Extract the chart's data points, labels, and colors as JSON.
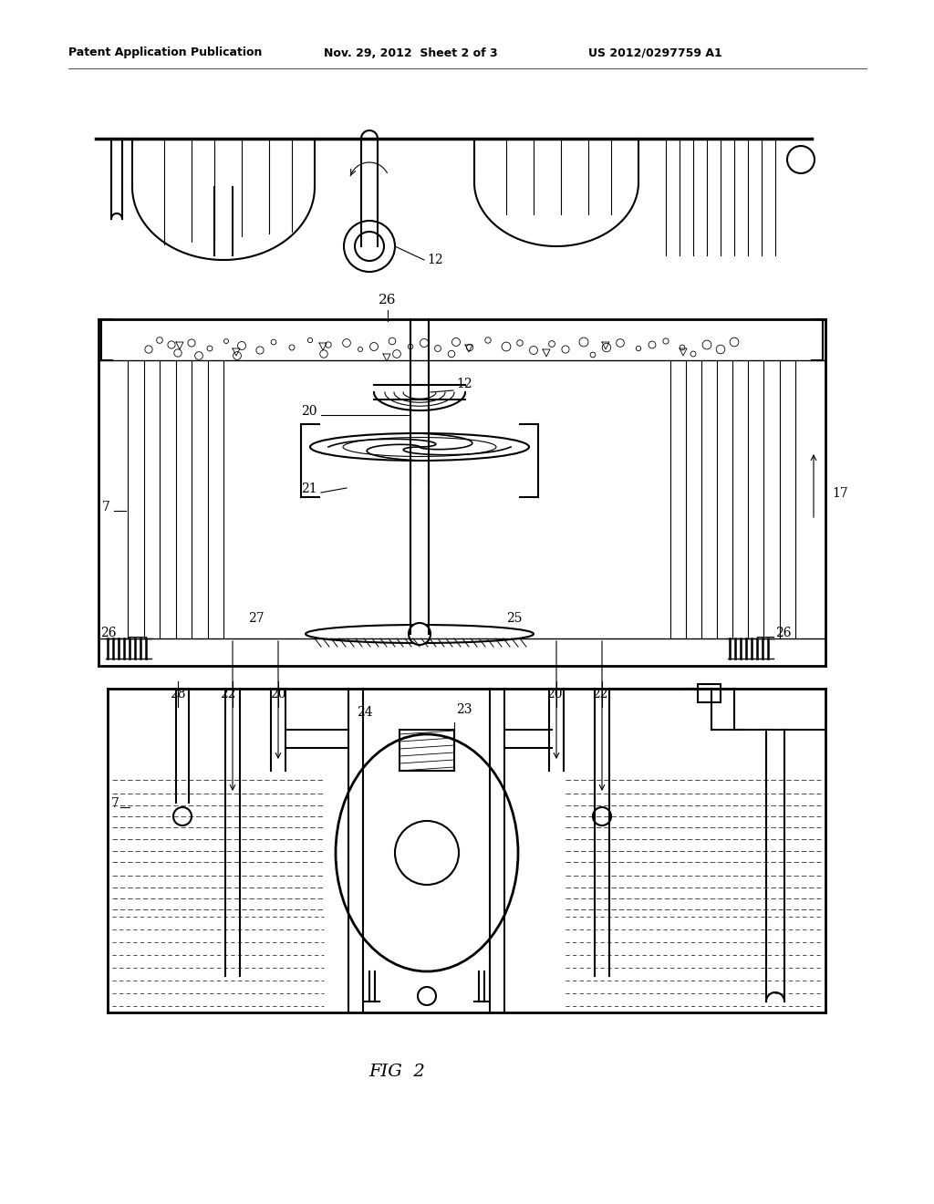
{
  "bg_color": "#ffffff",
  "header_left": "Patent Application Publication",
  "header_mid": "Nov. 29, 2012  Sheet 2 of 3",
  "header_right": "US 2012/0297759 A1",
  "fig_label": "FIG  2"
}
